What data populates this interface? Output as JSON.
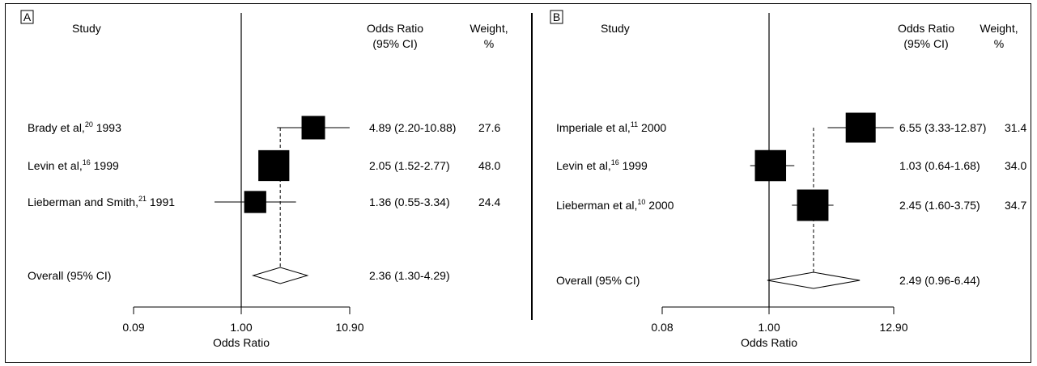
{
  "chart_data": [
    {
      "type": "forest",
      "panel_label": "A",
      "headers": {
        "study": "Study",
        "or_line1": "Odds Ratio",
        "or_line2": "(95% CI)",
        "weight_line1": "Weight,",
        "weight_line2": "%"
      },
      "xlabel": "Odds Ratio",
      "x_scale": "log",
      "xlim": [
        0.09,
        10.9
      ],
      "ticks": [
        "0.09",
        "1.00",
        "10.90"
      ],
      "null_line": 1.0,
      "studies": [
        {
          "name": "Brady et al,",
          "ref": "20",
          "year": "1993",
          "or": 4.89,
          "lo": 2.2,
          "hi": 10.88,
          "ci_text": "4.89 (2.20-10.88)",
          "weight": "27.6"
        },
        {
          "name": "Levin et al,",
          "ref": "16",
          "year": "1999",
          "or": 2.05,
          "lo": 1.52,
          "hi": 2.77,
          "ci_text": "2.05 (1.52-2.77)",
          "weight": "48.0"
        },
        {
          "name": "Lieberman and Smith,",
          "ref": "21",
          "year": "1991",
          "or": 1.36,
          "lo": 0.55,
          "hi": 3.34,
          "ci_text": "1.36 (0.55-3.34)",
          "weight": "24.4"
        }
      ],
      "overall": {
        "label": "Overall (95% CI)",
        "or": 2.36,
        "lo": 1.3,
        "hi": 4.29,
        "ci_text": "2.36 (1.30-4.29)"
      }
    },
    {
      "type": "forest",
      "panel_label": "B",
      "headers": {
        "study": "Study",
        "or_line1": "Odds Ratio",
        "or_line2": "(95% CI)",
        "weight_line1": "Weight,",
        "weight_line2": "%"
      },
      "xlabel": "Odds Ratio",
      "x_scale": "log",
      "xlim": [
        0.08,
        12.9
      ],
      "ticks": [
        "0.08",
        "1.00",
        "12.90"
      ],
      "null_line": 1.0,
      "studies": [
        {
          "name": "Imperiale et al,",
          "ref": "11",
          "year": "2000",
          "or": 6.55,
          "lo": 3.33,
          "hi": 12.87,
          "ci_text": "6.55 (3.33-12.87)",
          "weight": "31.4"
        },
        {
          "name": "Levin et al,",
          "ref": "16",
          "year": "1999",
          "or": 1.03,
          "lo": 0.64,
          "hi": 1.68,
          "ci_text": "1.03 (0.64-1.68)",
          "weight": "34.0"
        },
        {
          "name": "Lieberman et al,",
          "ref": "10",
          "year": "2000",
          "or": 2.45,
          "lo": 1.6,
          "hi": 3.75,
          "ci_text": "2.45 (1.60-3.75)",
          "weight": "34.7"
        }
      ],
      "overall": {
        "label": "Overall (95% CI)",
        "or": 2.49,
        "lo": 0.96,
        "hi": 6.44,
        "ci_text": "2.49 (0.96-6.44)"
      }
    }
  ]
}
